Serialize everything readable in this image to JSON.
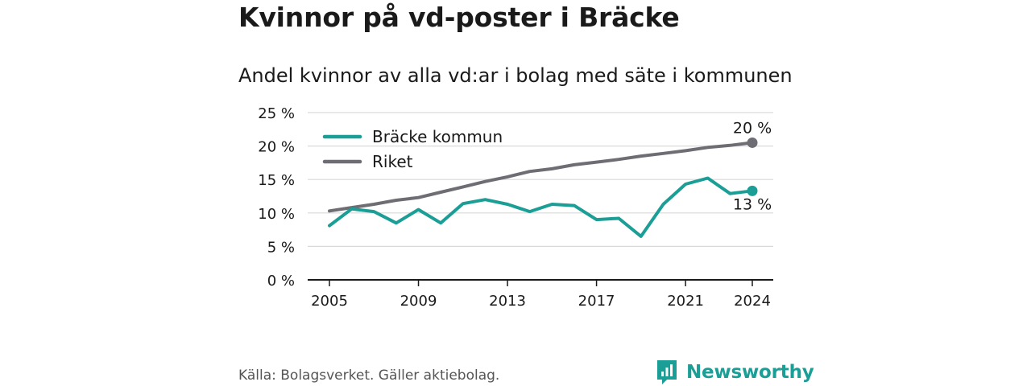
{
  "title": "Kvinnor på vd-poster i Bräcke",
  "subtitle": "Andel kvinnor av alla vd:ar i bolag med säte i kommunen",
  "source": "Källa: Bolagsverket. Gäller aktiebolag.",
  "brand": {
    "name": "Newsworthy",
    "color": "#1b9e96"
  },
  "chart_data": {
    "type": "line",
    "x": [
      2005,
      2006,
      2007,
      2008,
      2009,
      2010,
      2011,
      2012,
      2013,
      2014,
      2015,
      2016,
      2017,
      2018,
      2019,
      2020,
      2021,
      2022,
      2023,
      2024
    ],
    "x_ticks": [
      2005,
      2009,
      2013,
      2017,
      2021,
      2024
    ],
    "x_tick_labels": [
      "2005",
      "2009",
      "2013",
      "2017",
      "2021",
      "2024"
    ],
    "y_ticks": [
      0,
      5,
      10,
      15,
      20,
      25
    ],
    "y_tick_labels": [
      "0 %",
      "5 %",
      "10 %",
      "15 %",
      "20 %",
      "25 %"
    ],
    "ylim": [
      0,
      25
    ],
    "legend_position": "top-left",
    "series": [
      {
        "name": "Bräcke kommun",
        "color": "#1b9e96",
        "values": [
          8.1,
          10.6,
          10.2,
          8.5,
          10.5,
          8.5,
          11.4,
          12.0,
          11.3,
          10.2,
          11.3,
          11.1,
          9.0,
          9.2,
          6.5,
          11.3,
          14.3,
          15.2,
          12.9,
          13.3
        ],
        "end_label": "13 %"
      },
      {
        "name": "Riket",
        "color": "#6e6d73",
        "values": [
          10.3,
          10.8,
          11.3,
          11.9,
          12.3,
          13.1,
          13.9,
          14.7,
          15.4,
          16.2,
          16.6,
          17.2,
          17.6,
          18.0,
          18.5,
          18.9,
          19.3,
          19.8,
          20.1,
          20.5
        ],
        "end_label": "20 %"
      }
    ]
  }
}
